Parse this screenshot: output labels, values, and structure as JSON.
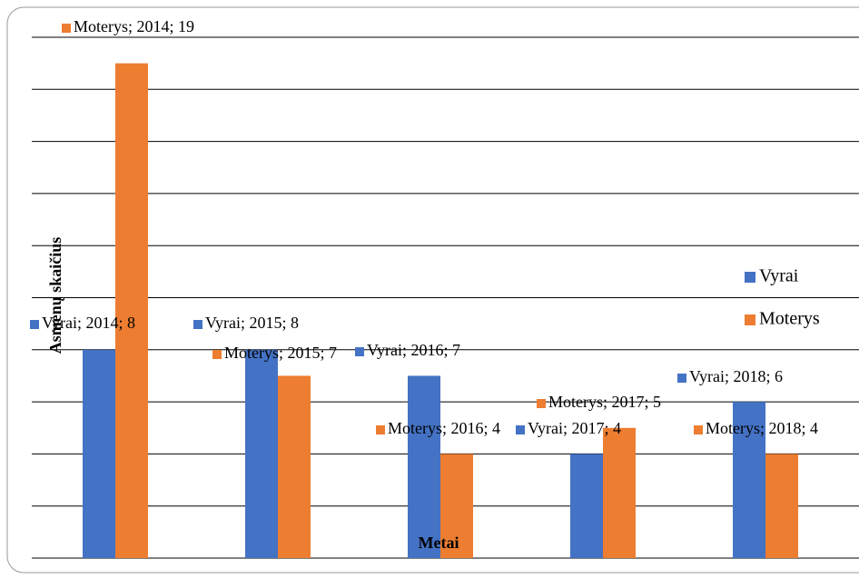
{
  "chart_data": {
    "type": "bar",
    "y_label": "Asmenų skaičius",
    "x_label": "Metai",
    "categories": [
      null,
      null,
      null,
      null,
      null
    ],
    "series": [
      {
        "name": "Vyrai",
        "color": "#4472c4",
        "values": [
          8,
          8,
          7,
          4,
          6
        ],
        "value_labels": [
          "Vyrai; 2014; 8",
          "Vyrai; 2015; 8",
          "Vyrai; 2016; 7",
          "Vyrai; 2017; 4",
          "Vyrai; 2018; 6"
        ]
      },
      {
        "name": "Moterys",
        "color": "#ed7d31",
        "values": [
          19,
          7,
          4,
          5,
          4
        ],
        "value_labels": [
          "Moterys; 2014; 19",
          "Moterys; 2015; 7",
          "Moterys; 2016; 4",
          "Moterys; 2017; 5",
          "Moterys; 2018; 4"
        ]
      }
    ],
    "ylim": [
      0,
      20
    ],
    "yticks": [
      0,
      2,
      4,
      6,
      8,
      10,
      12,
      14,
      16,
      18,
      20
    ],
    "grid": true,
    "legend": "right"
  }
}
